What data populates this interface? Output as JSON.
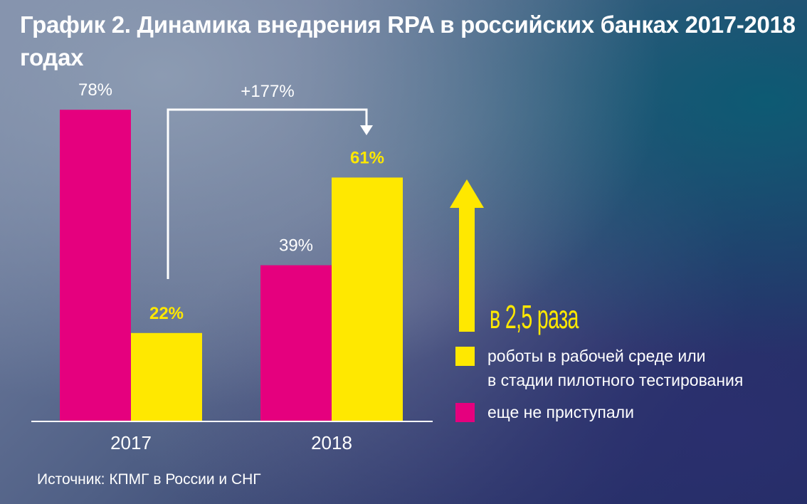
{
  "title": "График 2.  Динамика внедрения RPA в российских банках 2017-2018 годах",
  "chart_data": {
    "type": "bar",
    "categories": [
      "2017",
      "2018"
    ],
    "series": [
      {
        "name": "еще не приступали",
        "values": [
          78,
          39
        ],
        "labels": [
          "78%",
          "39%"
        ],
        "color": "#e5007e"
      },
      {
        "name": "роботы в рабочей среде или в стадии пилотного тестирования",
        "values": [
          22,
          61
        ],
        "labels": [
          "22%",
          "61%"
        ],
        "color": "#ffe800"
      }
    ],
    "ylim": [
      0,
      100
    ],
    "annotations": [
      {
        "text": "+177%",
        "type": "arrow-from-to",
        "from": "2017 yellow",
        "to": "2018 yellow"
      },
      {
        "text": "в 2,5 раза",
        "type": "up-arrow"
      }
    ]
  },
  "legend": {
    "items": [
      {
        "label_line1": "роботы в рабочей среде или",
        "label_line2": "в стадии пилотного тестирования",
        "color": "#ffe800"
      },
      {
        "label_line1": "еще не приступали",
        "label_line2": "",
        "color": "#e5007e"
      }
    ]
  },
  "annotation": {
    "change": "+177%",
    "growth": "в 2,5 раза"
  },
  "source": "Источник: КПМГ в России и СНГ"
}
